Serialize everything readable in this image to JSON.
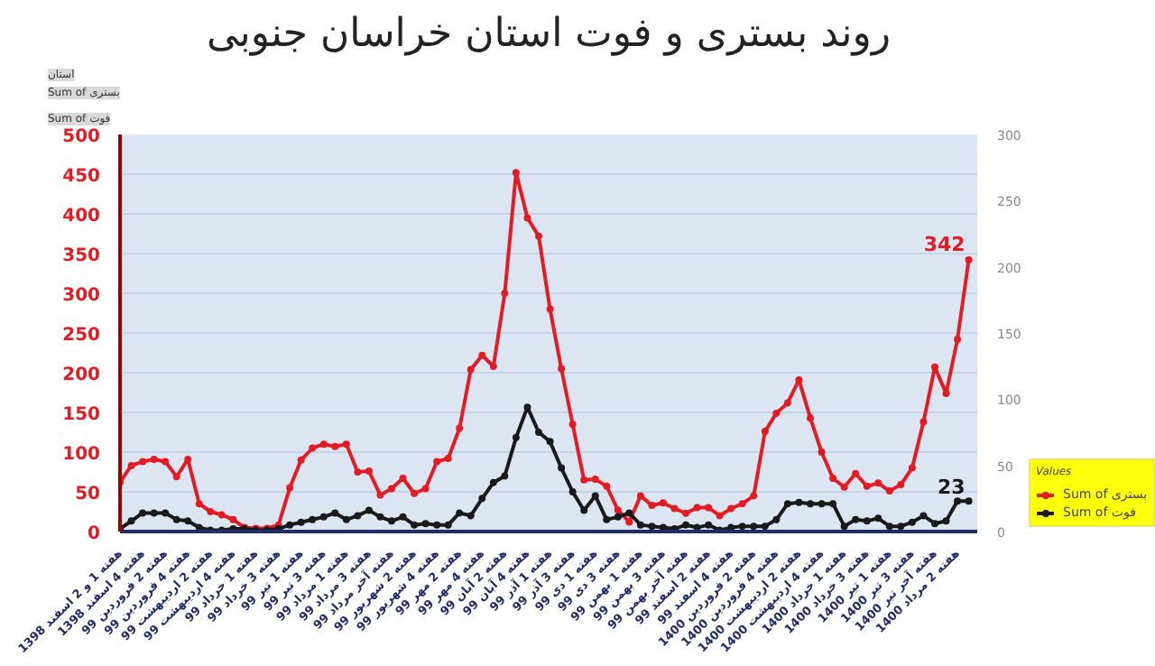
{
  "chart_data": {
    "type": "line",
    "title": "روند بستری و فوت استان خراسان جنوبی",
    "categories": [
      "هفته 1 و 2 اسفند 1398",
      null,
      "هفته 4 اسفند 1398",
      null,
      "هفته 2 فروردین 99",
      null,
      "هفته 4 فروردین 99",
      null,
      "هفته 2 اردیبهشت 99",
      null,
      "هفته 4 اردیبهشت 99",
      null,
      "هفته 1 خرداد 99",
      null,
      "هفته 3 خرداد 99",
      null,
      "هفته 1 تیر 99",
      null,
      "هفته 3 تیر 99",
      null,
      "هفته 1 مرداد 99",
      null,
      "هفته 3 مرداد 99",
      null,
      "هفته آخر مرداد 99",
      null,
      "هفته 2 شهریور 99",
      null,
      "هفته 4 شهریور 99",
      null,
      "هفته 2 مهر 99",
      null,
      "هفته 4 مهر 99",
      null,
      "هفته 2 آبان 99",
      null,
      "هفته 4 آبان 99",
      null,
      "هفته 1 آذر 99",
      null,
      "هفته 3 آذر 99",
      null,
      "هفته 1 دی 99",
      null,
      "هفته 3 دی 99",
      null,
      "هفته 1 بهمن 99",
      null,
      "هفته 3 بهمن 99",
      null,
      "هفته آخر بهمن 99",
      null,
      "هفته 2 اسفند 99",
      null,
      "هفته 4 اسفند 99",
      null,
      "هفته 2 فروردین 1400",
      null,
      "هفته 4 فروردین 1400",
      null,
      "هفته 2 اردیبهشت 1400",
      null,
      "هفته 4 اردیبهشت 1400",
      null,
      "هفته 1 خرداد 1400",
      null,
      "هفته 3 خرداد 1400",
      null,
      "هفته 1 تیر 1400",
      null,
      "هفته 3 تیر 1400",
      null,
      "هفته آخر تیر 1400",
      null,
      "هفته 2 مرداد 1400",
      null
    ],
    "series": [
      {
        "name": "Sum of بستری",
        "color": "#e31b23",
        "values": [
          62,
          83,
          88,
          91,
          88,
          69,
          91,
          35,
          25,
          21,
          15,
          5,
          4,
          4,
          8,
          55,
          90,
          105,
          110,
          107,
          110,
          75,
          76,
          46,
          54,
          67,
          48,
          54,
          88,
          92,
          130,
          204,
          222,
          208,
          300,
          452,
          395,
          372,
          280,
          205,
          135,
          65,
          66,
          57,
          27,
          12,
          45,
          33,
          36,
          29,
          23,
          30,
          30,
          20,
          29,
          35,
          45,
          126,
          149,
          162,
          191,
          143,
          100,
          67,
          56,
          73,
          57,
          61,
          51,
          59,
          80,
          138,
          207,
          174,
          242,
          342
        ],
        "value_labels": [
          null,
          null,
          null,
          null,
          null,
          null,
          null,
          null,
          null,
          null,
          null,
          null,
          null,
          null,
          null,
          null,
          null,
          null,
          null,
          null,
          null,
          null,
          null,
          null,
          null,
          null,
          null,
          null,
          null,
          null,
          null,
          null,
          null,
          null,
          null,
          null,
          null,
          null,
          null,
          null,
          null,
          null,
          null,
          null,
          null,
          null,
          null,
          null,
          null,
          null,
          null,
          null,
          null,
          null,
          null,
          null,
          null,
          null,
          null,
          null,
          null,
          null,
          null,
          null,
          null,
          null,
          null,
          null,
          null,
          null,
          null,
          null,
          null,
          null,
          null,
          "342"
        ]
      },
      {
        "name": "Sum of فوت",
        "color": "#1a1a1a",
        "axis": "y2",
        "values": [
          2,
          8,
          14,
          14,
          14,
          9,
          8,
          3,
          1,
          1,
          2,
          2,
          1,
          1,
          2,
          5,
          7,
          9,
          11,
          14,
          9,
          12,
          16,
          11,
          8,
          11,
          5,
          6,
          5,
          5,
          14,
          12,
          25,
          37,
          42,
          71,
          94,
          75,
          68,
          48,
          30,
          16,
          27,
          9,
          11,
          14,
          5,
          4,
          3,
          2,
          5,
          3,
          5,
          1,
          3,
          4,
          4,
          4,
          9,
          21,
          22,
          21,
          21,
          21,
          4,
          9,
          8,
          10,
          4,
          4,
          7,
          12,
          6,
          8,
          23,
          23
        ],
        "value_labels": [
          null,
          null,
          null,
          null,
          null,
          null,
          null,
          null,
          null,
          null,
          null,
          null,
          null,
          null,
          null,
          null,
          null,
          null,
          null,
          null,
          null,
          null,
          null,
          null,
          null,
          null,
          null,
          null,
          null,
          null,
          null,
          null,
          null,
          null,
          null,
          null,
          null,
          null,
          null,
          null,
          null,
          null,
          null,
          null,
          null,
          null,
          null,
          null,
          null,
          null,
          null,
          null,
          null,
          null,
          null,
          null,
          null,
          null,
          null,
          null,
          null,
          null,
          null,
          null,
          null,
          null,
          null,
          null,
          null,
          null,
          null,
          null,
          null,
          null,
          null,
          "23"
        ]
      }
    ],
    "ylim": [
      0,
      500
    ],
    "yticks": [
      0,
      50,
      100,
      150,
      200,
      250,
      300,
      350,
      400,
      450,
      500
    ],
    "y2lim": [
      0,
      300
    ],
    "y2ticks": [
      0,
      50,
      100,
      150,
      200,
      250,
      300
    ],
    "legend_title": "Values",
    "legend": "bottom right",
    "grid": "y",
    "marker": "circle",
    "line_style": "solid",
    "annotations": [
      "استان",
      "Sum of بستری",
      "Sum of فوت"
    ]
  }
}
